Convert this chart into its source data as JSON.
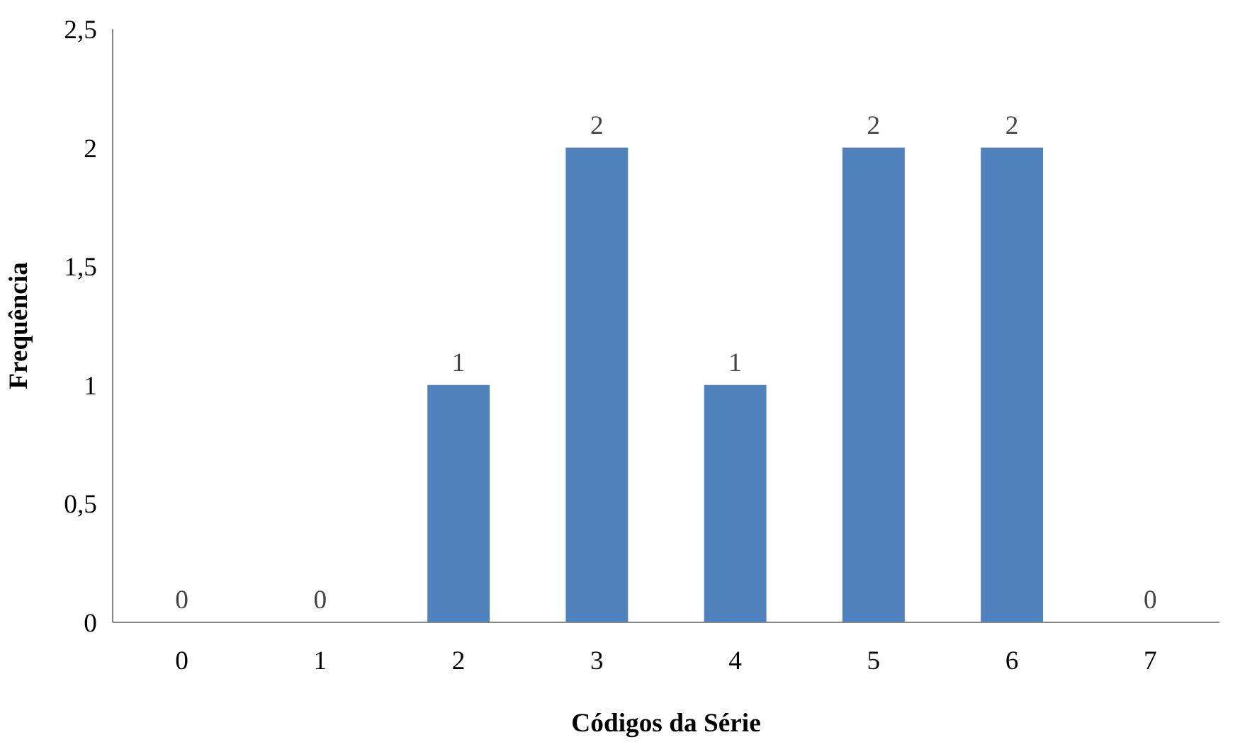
{
  "chart_data": {
    "type": "bar",
    "xlabel": "Códigos da Série",
    "ylabel": "Frequência",
    "categories": [
      "0",
      "1",
      "2",
      "3",
      "4",
      "5",
      "6",
      "7"
    ],
    "values": [
      0,
      0,
      1,
      2,
      1,
      2,
      2,
      0
    ],
    "color": "#4f81bd",
    "ylim": [
      0,
      2.5
    ],
    "yticks": [
      0,
      {
        "value": 0.5,
        "label": "0,5"
      },
      1,
      {
        "value": 1.5,
        "label": "1,5"
      },
      2,
      {
        "value": 2.5,
        "label": "2,5"
      }
    ],
    "data_labels": true,
    "grid": false
  }
}
